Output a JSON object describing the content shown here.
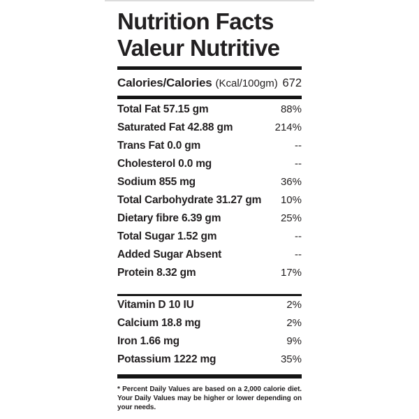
{
  "label": {
    "title_line1": "Nutrition Facts",
    "title_line2": "Valeur Nutritive",
    "calories": {
      "name": "Calories/Calories",
      "unit": "(Kcal/100gm)",
      "value": "672"
    },
    "nutrients": [
      {
        "name": "Total Fat 57.15 gm",
        "dv": "88%"
      },
      {
        "name": "Saturated Fat 42.88 gm",
        "dv": "214%"
      },
      {
        "name": "Trans Fat 0.0 gm",
        "dv": "--"
      },
      {
        "name": "Cholesterol 0.0 mg",
        "dv": "--"
      },
      {
        "name": "Sodium 855 mg",
        "dv": "36%"
      },
      {
        "name": "Total Carbohydrate 31.27 gm",
        "dv": "10%"
      },
      {
        "name": "Dietary fibre 6.39 gm",
        "dv": "25%"
      },
      {
        "name": "Total Sugar 1.52 gm",
        "dv": "--"
      },
      {
        "name": "Added Sugar Absent",
        "dv": "--"
      },
      {
        "name": "Protein 8.32 gm",
        "dv": "17%"
      }
    ],
    "vitamins": [
      {
        "name": "Vitamin D 10 IU",
        "dv": "2%"
      },
      {
        "name": "Calcium 18.8 mg",
        "dv": "2%"
      },
      {
        "name": "Iron 1.66 mg",
        "dv": "9%"
      },
      {
        "name": "Potassium 1222 mg",
        "dv": "35%"
      }
    ],
    "footnote": "* Percent Daily Values are based on a 2,000 calorie diet. Your Daily Values may be higher or lower depending on your needs.",
    "colors": {
      "text": "#232021",
      "rule": "#141414",
      "top_edge": "#dcdcdc"
    }
  }
}
